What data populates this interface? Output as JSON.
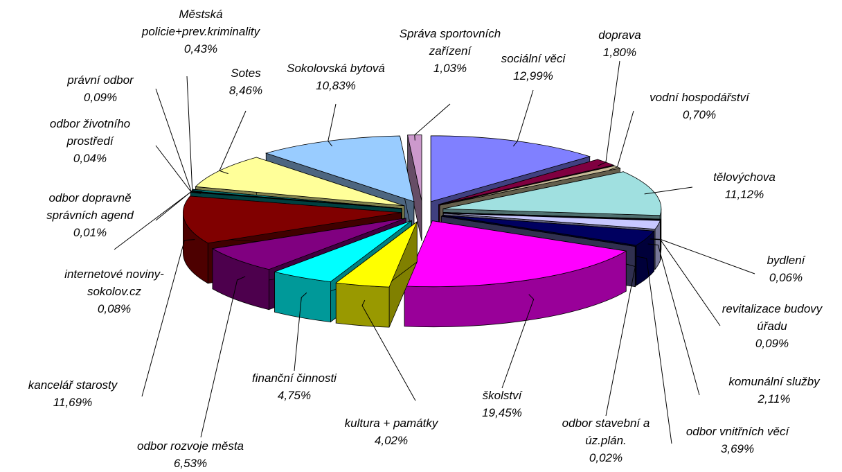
{
  "chart_data": {
    "type": "pie",
    "categories": [
      "sociální věci",
      "doprava",
      "vodní hospodářství",
      "tělovýchova",
      "bydlení",
      "revitalizace budovy úřadu",
      "komunální služby",
      "odbor vnitřních věcí",
      "odbor stavební a úz.plán.",
      "školství",
      "kultura + památky",
      "finanční činnosti",
      "odbor rozvoje města",
      "kancelář starosty",
      "internetové noviny-sokolov.cz",
      "odbor dopravně správních agend",
      "odbor životního prostředí",
      "právní odbor",
      "Městská policie+prev.kriminality",
      "Sotes",
      "Sokolovská bytová",
      "Správa sportovních zařízení"
    ],
    "values": [
      12.99,
      1.8,
      0.7,
      11.12,
      0.06,
      0.09,
      2.11,
      3.69,
      0.02,
      19.45,
      4.02,
      4.75,
      6.53,
      11.69,
      0.08,
      0.01,
      0.04,
      0.09,
      0.43,
      8.46,
      10.83,
      1.03
    ],
    "value_labels": [
      "12,99%",
      "1,80%",
      "0,70%",
      "11,12%",
      "0,06%",
      "0,09%",
      "2,11%",
      "3,69%",
      "0,02%",
      "19,45%",
      "4,02%",
      "4,75%",
      "6,53%",
      "11,69%",
      "0,08%",
      "0,01%",
      "0,04%",
      "0,09%",
      "0,43%",
      "8,46%",
      "10,83%",
      "1,03%"
    ],
    "colors": [
      "#8080ff",
      "#800040",
      "#c8bc98",
      "#a0e0e0",
      "#0080c0",
      "#000080",
      "#c8c8ff",
      "#000060",
      "#6060a0",
      "#ff00ff",
      "#ffff00",
      "#00ffff",
      "#800080",
      "#800000",
      "#008080",
      "#0000ff",
      "#ccffff",
      "#ccffcc",
      "#008080",
      "#ffff99",
      "#99ccff",
      "#cc99cc"
    ]
  }
}
